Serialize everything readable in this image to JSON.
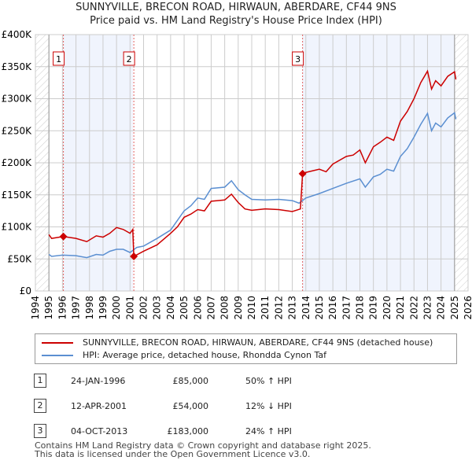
{
  "title": "SUNNYVILLE, BRECON ROAD, HIRWAUN, ABERDARE, CF44 9NS",
  "subtitle": "Price paid vs. HM Land Registry's House Price Index (HPI)",
  "chart_data": {
    "type": "line",
    "xlim": [
      1994,
      2026
    ],
    "ylim": [
      0,
      400000
    ],
    "x_ticks": [
      "1994",
      "1995",
      "1996",
      "1997",
      "1998",
      "1999",
      "2000",
      "2001",
      "2002",
      "2003",
      "2004",
      "2005",
      "2006",
      "2007",
      "2008",
      "2009",
      "2010",
      "2011",
      "2012",
      "2013",
      "2014",
      "2015",
      "2016",
      "2017",
      "2018",
      "2019",
      "2020",
      "2021",
      "2022",
      "2023",
      "2024",
      "2025",
      "2026"
    ],
    "y_ticks": [
      {
        "v": 0,
        "l": "£0"
      },
      {
        "v": 50000,
        "l": "£50K"
      },
      {
        "v": 100000,
        "l": "£100K"
      },
      {
        "v": 150000,
        "l": "£150K"
      },
      {
        "v": 200000,
        "l": "£200K"
      },
      {
        "v": 250000,
        "l": "£250K"
      },
      {
        "v": 300000,
        "l": "£300K"
      },
      {
        "v": 350000,
        "l": "£350K"
      },
      {
        "v": 400000,
        "l": "£400K"
      }
    ],
    "colors": {
      "property": "#cc0000",
      "hpi": "#5b8fd1"
    },
    "series": [
      {
        "name": "SUNNYVILLE, BRECON ROAD, HIRWAUN, ABERDARE, CF44 9NS (detached house)",
        "x": [
          1995,
          1995.2,
          1996.07,
          1997,
          1997.8,
          1998.5,
          1999,
          1999.5,
          2000,
          2000.5,
          2001,
          2001.2,
          2001.28,
          2002,
          2003,
          2004,
          2004.5,
          2005,
          2005.5,
          2006,
          2006.5,
          2007,
          2008,
          2008.5,
          2009,
          2009.5,
          2010,
          2011,
          2012,
          2013,
          2013.6,
          2013.76,
          2014,
          2015,
          2015.5,
          2016,
          2017,
          2017.5,
          2018,
          2018.4,
          2019,
          2019.5,
          2020,
          2020.5,
          2021,
          2021.5,
          2022,
          2022.5,
          2023,
          2023.3,
          2023.6,
          2024,
          2024.5,
          2025,
          2025.1
        ],
        "y": [
          88000,
          82000,
          85000,
          82000,
          77000,
          86000,
          84000,
          90000,
          99000,
          96000,
          90000,
          96000,
          54000,
          62000,
          72000,
          90000,
          100000,
          115000,
          120000,
          127000,
          125000,
          140000,
          142000,
          151000,
          138000,
          128000,
          126000,
          128000,
          127000,
          124000,
          128000,
          183000,
          185000,
          190000,
          186000,
          198000,
          210000,
          212000,
          220000,
          200000,
          225000,
          232000,
          240000,
          235000,
          265000,
          280000,
          300000,
          325000,
          343000,
          315000,
          328000,
          320000,
          335000,
          342000,
          330000
        ]
      },
      {
        "name": "HPI: Average price, detached house, Rhondda Cynon Taf",
        "x": [
          1995,
          1995.2,
          1996,
          1997,
          1997.8,
          1998.5,
          1999,
          1999.5,
          2000,
          2000.5,
          2001,
          2001.5,
          2002,
          2003,
          2004,
          2004.5,
          2005,
          2005.5,
          2006,
          2006.5,
          2007,
          2008,
          2008.5,
          2009,
          2009.5,
          2010,
          2011,
          2012,
          2013,
          2013.5,
          2014,
          2015,
          2016,
          2017,
          2018,
          2018.4,
          2019,
          2019.5,
          2020,
          2020.5,
          2021,
          2021.5,
          2022,
          2022.5,
          2023,
          2023.3,
          2023.6,
          2024,
          2024.5,
          2025,
          2025.1
        ],
        "y": [
          57000,
          54000,
          56000,
          55000,
          52000,
          57000,
          56000,
          62000,
          65000,
          65000,
          60000,
          68000,
          70000,
          82000,
          95000,
          110000,
          125000,
          133000,
          145000,
          143000,
          160000,
          162000,
          172000,
          158000,
          150000,
          143000,
          142000,
          143000,
          141000,
          137000,
          145000,
          152000,
          160000,
          168000,
          175000,
          162000,
          178000,
          182000,
          190000,
          187000,
          210000,
          222000,
          240000,
          260000,
          277000,
          250000,
          262000,
          256000,
          270000,
          278000,
          268000
        ]
      }
    ],
    "sales": [
      {
        "n": "1",
        "x": 1996.07,
        "y": 85000
      },
      {
        "n": "2",
        "x": 2001.28,
        "y": 54000
      },
      {
        "n": "3",
        "x": 2013.76,
        "y": 183000
      }
    ],
    "shaded": [
      [
        1996.07,
        2001.2
      ],
      [
        2013.76,
        2025
      ]
    ],
    "hatched": [
      [
        1994,
        1995
      ],
      [
        2025,
        2026
      ]
    ]
  },
  "legend": {
    "property": "SUNNYVILLE, BRECON ROAD, HIRWAUN, ABERDARE, CF44 9NS (detached house)",
    "hpi": "HPI: Average price, detached house, Rhondda Cynon Taf"
  },
  "transactions": [
    {
      "n": "1",
      "date": "24-JAN-1996",
      "price": "£85,000",
      "hpi": "50% ↑ HPI"
    },
    {
      "n": "2",
      "date": "12-APR-2001",
      "price": "£54,000",
      "hpi": "12% ↓ HPI"
    },
    {
      "n": "3",
      "date": "04-OCT-2013",
      "price": "£183,000",
      "hpi": "24% ↑ HPI"
    }
  ],
  "footer": [
    "Contains HM Land Registry data © Crown copyright and database right 2025.",
    "This data is licensed under the Open Government Licence v3.0."
  ]
}
